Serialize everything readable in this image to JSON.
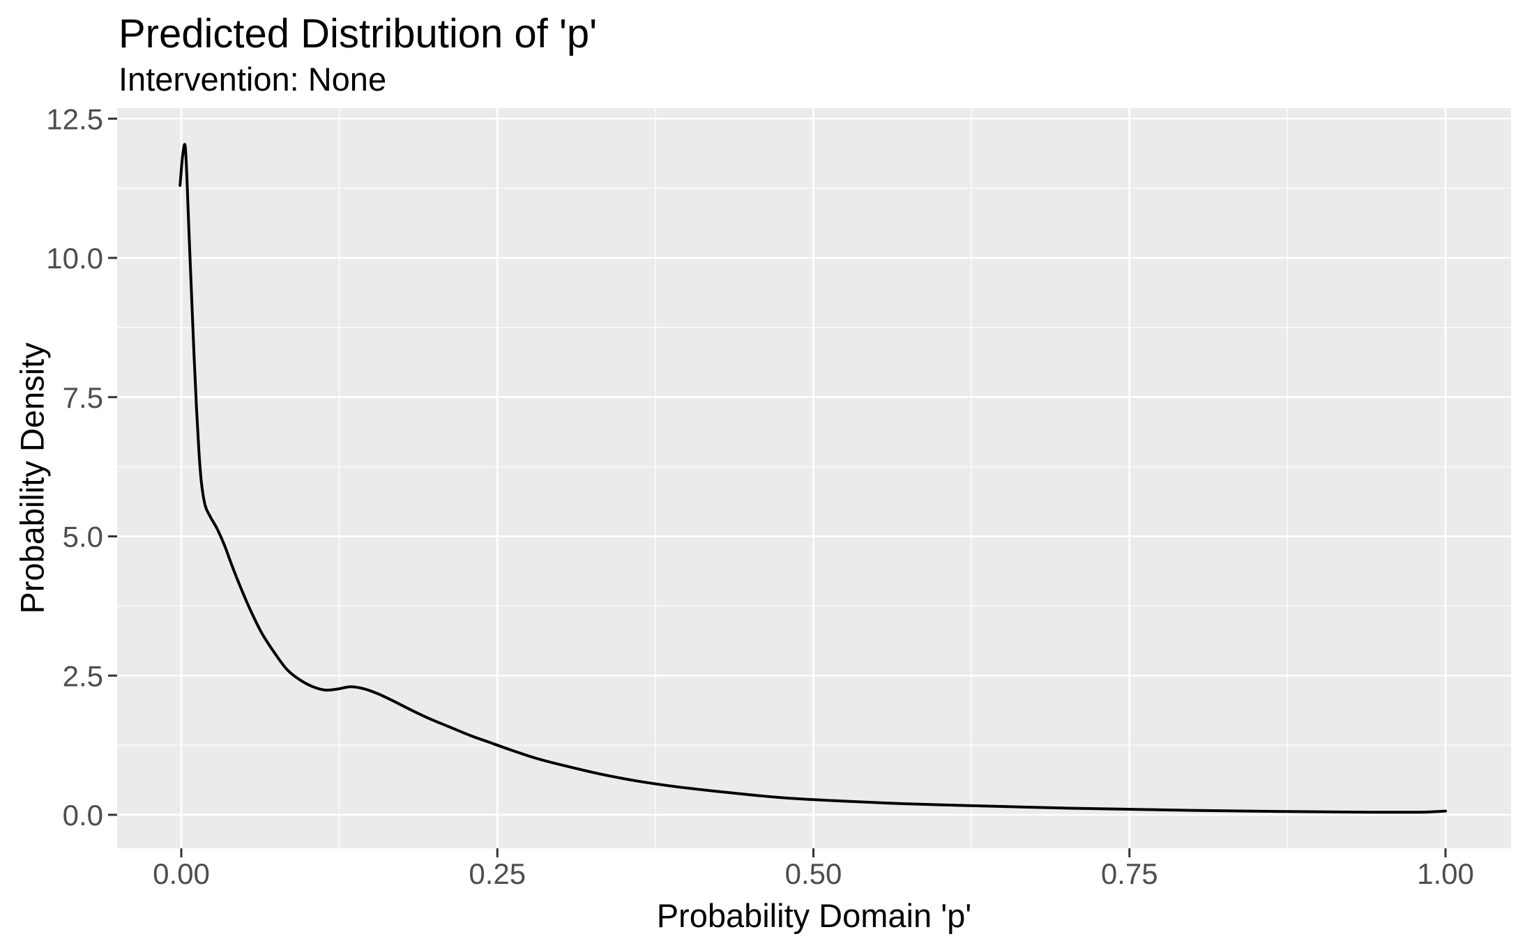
{
  "chart_data": {
    "type": "line",
    "subtype": "density",
    "title": "Predicted Distribution of 'p'",
    "subtitle": "Intervention: None",
    "xlabel": "Probability Domain 'p'",
    "ylabel": "Probability Density",
    "xlim": [
      0,
      1
    ],
    "ylim": [
      0,
      12.5
    ],
    "expansion": 0.05,
    "grid": true,
    "legend": "none",
    "theme": "ggplot-grey",
    "x_ticks": {
      "values": [
        0,
        0.25,
        0.5,
        0.75,
        1.0
      ],
      "labels": [
        "0.00",
        "0.25",
        "0.50",
        "0.75",
        "1.00"
      ]
    },
    "y_ticks": {
      "values": [
        0,
        2.5,
        5,
        7.5,
        10,
        12.5
      ],
      "labels": [
        "0.0",
        "2.5",
        "5.0",
        "7.5",
        "10.0",
        "12.5"
      ]
    },
    "x_minor": [
      0.125,
      0.375,
      0.625,
      0.875
    ],
    "y_minor": [
      1.25,
      3.75,
      6.25,
      8.75,
      11.25
    ],
    "colors": {
      "background": "#FFFFFF",
      "panel_background": "#EBEBEB",
      "grid": "#FFFFFF",
      "curve": "#000000",
      "tick_mark": "#333333",
      "tick_label": "#4D4D4D",
      "text": "#000000"
    },
    "series": [
      {
        "name": "density",
        "points": [
          [
            -0.001,
            11.3
          ],
          [
            0.001,
            11.82
          ],
          [
            0.003,
            12.02
          ],
          [
            0.0045,
            11.4
          ],
          [
            0.006,
            10.5
          ],
          [
            0.008,
            9.4
          ],
          [
            0.01,
            8.3
          ],
          [
            0.012,
            7.3
          ],
          [
            0.014,
            6.5
          ],
          [
            0.016,
            5.95
          ],
          [
            0.019,
            5.55
          ],
          [
            0.023,
            5.35
          ],
          [
            0.028,
            5.15
          ],
          [
            0.034,
            4.85
          ],
          [
            0.04,
            4.48
          ],
          [
            0.047,
            4.08
          ],
          [
            0.055,
            3.66
          ],
          [
            0.064,
            3.25
          ],
          [
            0.074,
            2.9
          ],
          [
            0.084,
            2.6
          ],
          [
            0.094,
            2.42
          ],
          [
            0.104,
            2.3
          ],
          [
            0.114,
            2.24
          ],
          [
            0.124,
            2.26
          ],
          [
            0.134,
            2.3
          ],
          [
            0.145,
            2.26
          ],
          [
            0.156,
            2.17
          ],
          [
            0.169,
            2.03
          ],
          [
            0.182,
            1.88
          ],
          [
            0.197,
            1.72
          ],
          [
            0.212,
            1.58
          ],
          [
            0.228,
            1.43
          ],
          [
            0.244,
            1.3
          ],
          [
            0.26,
            1.17
          ],
          [
            0.28,
            1.02
          ],
          [
            0.3,
            0.9
          ],
          [
            0.33,
            0.74
          ],
          [
            0.36,
            0.61
          ],
          [
            0.39,
            0.51
          ],
          [
            0.42,
            0.43
          ],
          [
            0.45,
            0.36
          ],
          [
            0.48,
            0.3
          ],
          [
            0.52,
            0.25
          ],
          [
            0.56,
            0.21
          ],
          [
            0.6,
            0.18
          ],
          [
            0.65,
            0.15
          ],
          [
            0.7,
            0.12
          ],
          [
            0.75,
            0.1
          ],
          [
            0.8,
            0.08
          ],
          [
            0.85,
            0.065
          ],
          [
            0.9,
            0.055
          ],
          [
            0.94,
            0.048
          ],
          [
            0.97,
            0.046
          ],
          [
            0.985,
            0.05
          ],
          [
            1.0,
            0.068
          ]
        ]
      }
    ]
  }
}
